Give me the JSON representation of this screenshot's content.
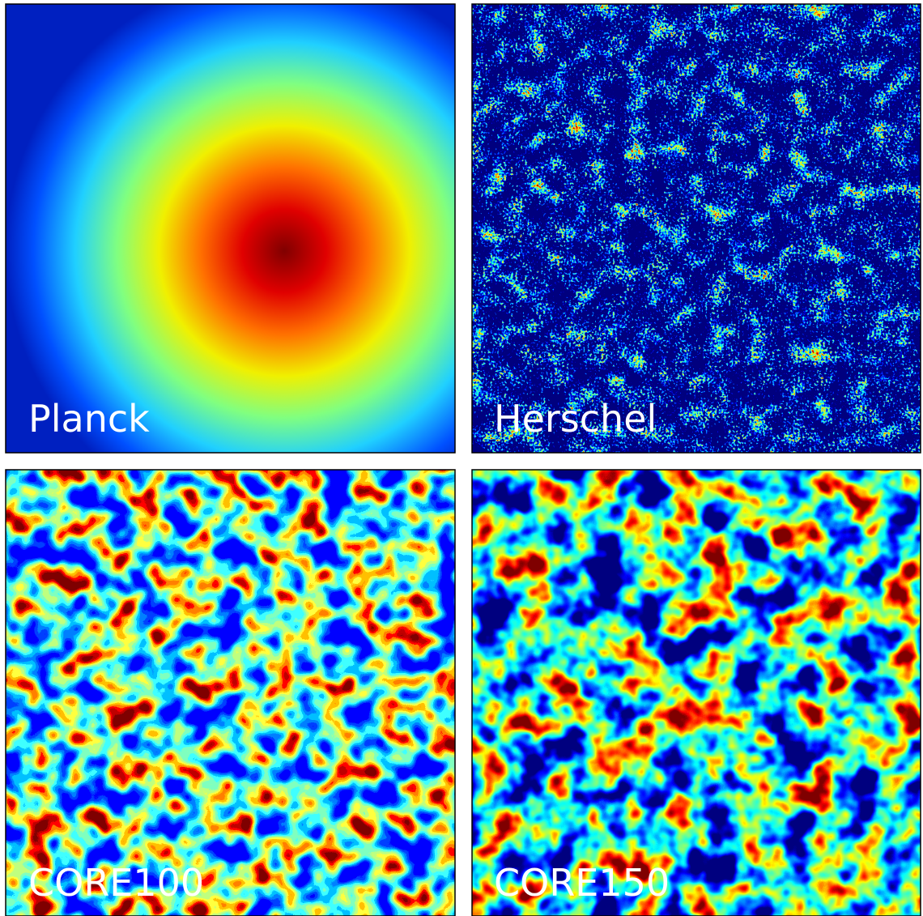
{
  "panels": [
    {
      "label": "Planck"
    },
    {
      "label": "Herschel"
    },
    {
      "label": "CORE100"
    },
    {
      "label": "CORE150"
    }
  ]
}
